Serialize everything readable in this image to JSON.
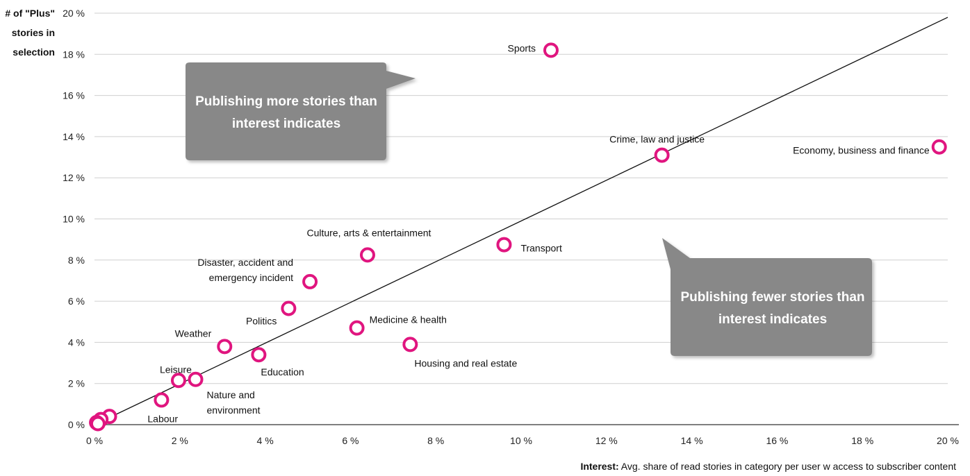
{
  "chart_data": {
    "type": "scatter",
    "ylabel_lines": [
      "# of \"Plus\"",
      "stories in",
      "selection"
    ],
    "xlabel_bold": "Interest:",
    "xlabel": " Avg. share of  read stories in category per  user w access to subscriber content",
    "xlim": [
      0,
      20
    ],
    "ylim": [
      0,
      20
    ],
    "x_ticks": [
      0,
      2,
      4,
      6,
      8,
      10,
      12,
      14,
      16,
      18,
      20
    ],
    "y_ticks": [
      0,
      2,
      4,
      6,
      8,
      10,
      12,
      14,
      16,
      18,
      20
    ],
    "tick_labels": {
      "x": [
        "0 %",
        "2 %",
        "4 %",
        "6 %",
        "8 %",
        "10 %",
        "12 %",
        "14 %",
        "16 %",
        "18 %",
        "20 %"
      ],
      "y": [
        "0 %",
        "2 %",
        "4 %",
        "6 %",
        "8 %",
        "10 %",
        "12 %",
        "14 %",
        "16 %",
        "18 %",
        "20 %"
      ]
    },
    "grid": "horizontal",
    "marker_color": "#e0157f",
    "diagonal_line": {
      "from": [
        0,
        0
      ],
      "to": [
        20,
        19.8
      ]
    },
    "points": [
      {
        "label": "Sports",
        "x": 10.7,
        "y": 18.2
      },
      {
        "label": "Crime, law and justice",
        "x": 13.3,
        "y": 13.1
      },
      {
        "label": "Economy, business and finance",
        "x": 19.8,
        "y": 13.5
      },
      {
        "label": "Transport",
        "x": 9.6,
        "y": 8.75
      },
      {
        "label": "Culture, arts & entertainment",
        "x": 6.4,
        "y": 8.25
      },
      {
        "label": "Disaster, accident and emergency incident",
        "x": 5.05,
        "y": 6.95
      },
      {
        "label": "Politics",
        "x": 4.55,
        "y": 5.65
      },
      {
        "label": "Medicine & health",
        "x": 6.15,
        "y": 4.7
      },
      {
        "label": "Housing and real estate",
        "x": 7.4,
        "y": 3.9
      },
      {
        "label": "Weather",
        "x": 3.05,
        "y": 3.8
      },
      {
        "label": "Education",
        "x": 3.85,
        "y": 3.4
      },
      {
        "label": "Leisure",
        "x": 1.97,
        "y": 2.15
      },
      {
        "label": "Nature and environment",
        "x": 2.37,
        "y": 2.2
      },
      {
        "label": "Labour",
        "x": 1.57,
        "y": 1.2
      },
      {
        "label": "",
        "x": 0.35,
        "y": 0.4
      },
      {
        "label": "",
        "x": 0.15,
        "y": 0.25
      },
      {
        "label": "",
        "x": 0.05,
        "y": 0.1
      },
      {
        "label": "",
        "x": 0.08,
        "y": 0.05
      }
    ],
    "annotations": [
      {
        "text_lines": [
          "Publishing more stories than",
          "interest indicates"
        ]
      },
      {
        "text_lines": [
          "Publishing fewer stories than",
          "interest indicates"
        ]
      }
    ]
  }
}
